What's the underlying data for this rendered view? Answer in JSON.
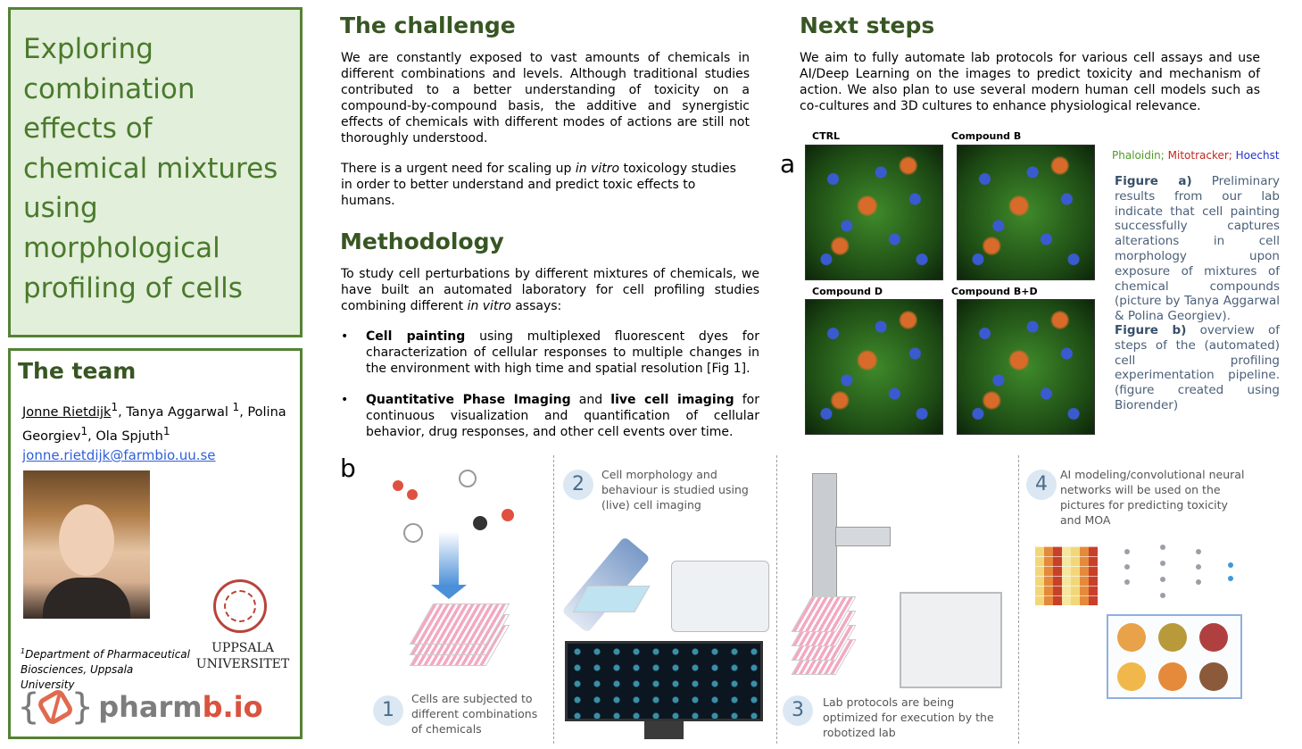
{
  "title": {
    "lines": [
      "Exploring",
      "combination",
      "effects of",
      "chemical mixtures",
      "using",
      "morphological",
      "profiling of cells"
    ]
  },
  "team": {
    "heading": "The team",
    "author1": "Jonne Rietdijk",
    "sup1": "1",
    "author_rest1": ", Tanya Aggarwal ",
    "sup2": "1",
    "author_rest2": ", Polina Georgiev",
    "sup3": "1",
    "author_rest3": ", Ola Spjuth",
    "sup4": "1",
    "email": "jonne.rietdijk@farmbio.uu.se",
    "dept_sup": "1",
    "dept": "Department of Pharmaceutical Biosciences, Uppsala University",
    "university_line1": "UPPSALA",
    "university_line2": "UNIVERSITET",
    "logo_brace_open": "{",
    "logo_brace_close": "}",
    "logo_word_a": "pharm",
    "logo_word_b": "b.io"
  },
  "challenge": {
    "heading": "The challenge",
    "p1": "We are constantly exposed to vast amounts of chemicals in different combinations and levels. Although traditional studies contributed to a better understanding of toxicity on a compound-by-compound basis, the additive and synergistic effects of chemicals with different modes of actions are still not thoroughly understood.",
    "p2_a": "There is a urgent need for scaling up ",
    "p2_em": "in vitro",
    "p2_b": " toxicology studies in order to better understand and predict toxic effects to humans."
  },
  "methodology": {
    "heading": "Methodology",
    "intro_a": "To study cell perturbations by different mixtures of chemicals, we have built an automated laboratory for cell profiling studies combining different ",
    "intro_em": "in vitro",
    "intro_b": " assays:",
    "bullet_glyph": "•",
    "b1_bold": "Cell painting",
    "b1_rest": " using multiplexed fluorescent dyes for characterization of cellular responses to multiple changes in the environment with high time and spatial resolution [Fig 1].",
    "b2_bold1": "Quantitative Phase Imaging",
    "b2_mid": " and ",
    "b2_bold2": "live cell imaging",
    "b2_rest": " for continuous visualization and quantification of cellular behavior, drug responses, and other cell events over time."
  },
  "next_steps": {
    "heading": "Next steps",
    "text": "We aim to fully automate lab protocols for various cell assays and use AI/Deep Learning on the images to predict toxicity and mechanism of action. We also plan to use several modern human cell models such as co-cultures and 3D cultures to enhance physiological relevance."
  },
  "figure_a": {
    "letter": "a",
    "labels": [
      "CTRL",
      "Compound B",
      "Compound D",
      "Compound B+D"
    ],
    "legend_g": "Phaloidin;",
    "legend_r": " Mitotracker;",
    "legend_b": " Hoechst",
    "cap_a_bold": "Figure a)",
    "cap_a": " Preliminary results from our lab indicate that cell painting successfully captures alterations in cell morphology upon exposure of mixtures of chemical compounds (picture by Tanya Aggarwal & Polina Georgiev).",
    "cap_b_bold": "Figure b)",
    "cap_b": " overview of steps of the (automated) cell profiling experimentation pipeline. (figure created using Biorender)"
  },
  "figure_b": {
    "letter": "b",
    "steps": [
      {
        "num": "1",
        "text": "Cells are subjected to different combinations of chemicals"
      },
      {
        "num": "2",
        "text": "Cell morphology and behaviour is studied using (live) cell imaging"
      },
      {
        "num": "3",
        "text": "Lab protocols are being optimized for execution by the robotized lab"
      },
      {
        "num": "4",
        "text": "AI modeling/convolutional neural networks will be used on the pictures for predicting toxicity and MOA"
      }
    ]
  },
  "colors": {
    "title_bg": "#e2efda",
    "title_text": "#4a7a2c",
    "heading": "#375623",
    "border": "#548235",
    "link": "#2f5fd8",
    "caption": "#4a5f78"
  }
}
